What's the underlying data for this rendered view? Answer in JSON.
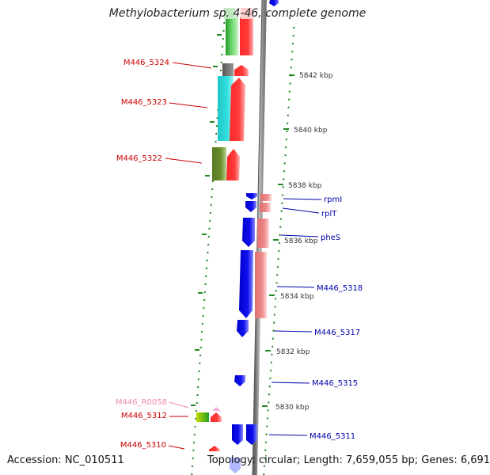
{
  "title": "Methylobacterium sp. 4-46, complete genome",
  "accession": "Accession: NC_010511",
  "info": "Topology: circular; Length: 7,659,055 bp; Genes: 6,691",
  "colors": {
    "left_label": "#cc0000",
    "right_label": "#0000aa",
    "rna_label": "#ee88aa",
    "backbone": "#888888",
    "tick": "#228822"
  },
  "kbp_labels": [
    {
      "text": "5842 kbp"
    },
    {
      "text": "5840 kbp"
    },
    {
      "text": "5838 kbp"
    },
    {
      "text": "5836 kbp"
    },
    {
      "text": "5834 kbp"
    },
    {
      "text": "5832 kbp"
    },
    {
      "text": "5830 kbp"
    }
  ],
  "left_genes": [
    {
      "text": "M446_5324",
      "color": "#cc0000"
    },
    {
      "text": "M446_5323",
      "color": "#cc0000"
    },
    {
      "text": "M446_5322",
      "color": "#cc0000"
    },
    {
      "text": "M446_R0058",
      "color": "#ee88aa"
    },
    {
      "text": "M446_5312",
      "color": "#cc0000"
    },
    {
      "text": "M446_5310",
      "color": "#cc0000"
    }
  ],
  "right_genes": [
    {
      "text": "rpmI"
    },
    {
      "text": "rplT"
    },
    {
      "text": "pheS"
    },
    {
      "text": "M446_5318"
    },
    {
      "text": "M446_5317"
    },
    {
      "text": "M446_5315"
    },
    {
      "text": "M446_5311"
    }
  ]
}
